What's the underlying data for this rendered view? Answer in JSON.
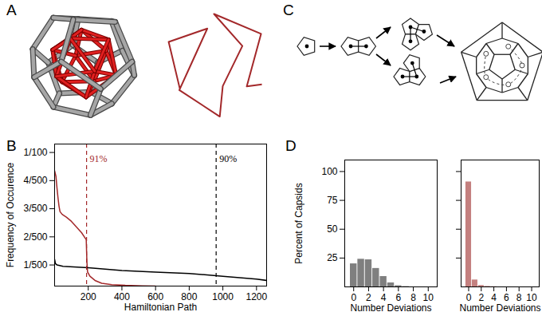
{
  "diagrams": [
    {
      "label": "A"
    },
    {
      "label": "C"
    }
  ],
  "chart_data": [
    {
      "type": "line",
      "title": "B",
      "x_label": "Hamiltonian Path",
      "y_label": "Frequency of Occurence",
      "series": [
        {
          "color": "#a3282a",
          "x": [
            0,
            8,
            14,
            20,
            26,
            32,
            45,
            70,
            100,
            130,
            160,
            188,
            192,
            196,
            210,
            240,
            280,
            340,
            420,
            520,
            600
          ],
          "values": [
            0.0087,
            0.0083,
            0.0075,
            0.0068,
            0.0062,
            0.0058,
            0.0056,
            0.0054,
            0.0051,
            0.0047,
            0.0043,
            0.0038,
            0.0022,
            0.0015,
            0.0012,
            0.0009,
            0.0007,
            0.0006,
            0.00055,
            0.00052,
            0.0005
          ]
        },
        {
          "color": "#000000",
          "x": [
            0,
            5,
            15,
            50,
            200,
            400,
            600,
            800,
            1000,
            1200,
            1260
          ],
          "values": [
            0.0024,
            0.0021,
            0.002,
            0.0019,
            0.0018,
            0.0016,
            0.0015,
            0.0014,
            0.0012,
            0.001,
            0.0009
          ]
        }
      ],
      "annotations": [
        {
          "x": 190,
          "text": "91%",
          "color": "#a3282a",
          "line_style": "dashed"
        },
        {
          "x": 960,
          "text": "90%",
          "color": "#000000",
          "line_style": "dashed"
        }
      ],
      "xlim": [
        0,
        1260
      ],
      "xticks": [
        200,
        400,
        600,
        800,
        1000,
        1200
      ],
      "ylim": [
        0.0005,
        0.0106
      ],
      "yticks": [
        {
          "value": 0.002,
          "label": "1/500"
        },
        {
          "value": 0.004,
          "label": "2/500"
        },
        {
          "value": 0.006,
          "label": "3/500"
        },
        {
          "value": 0.008,
          "label": "4/500"
        },
        {
          "value": 0.01,
          "label": "1/100"
        }
      ]
    },
    {
      "type": "bar",
      "title": "D",
      "x_label": "Number Deviations",
      "y_label": "Percent of Capsids",
      "x": [
        0,
        1,
        2,
        3,
        4,
        5,
        6,
        7,
        8,
        9,
        10
      ],
      "values": [
        20,
        24,
        23.5,
        16,
        9,
        3.5,
        1,
        0.3,
        0,
        0,
        0
      ],
      "color": "#7f7f7f",
      "xlim": [
        -1.2,
        11.2
      ],
      "xticks": [
        0,
        2,
        4,
        6,
        8,
        10
      ],
      "ylim": [
        0,
        110
      ],
      "yticks": [
        25,
        50,
        75,
        100
      ]
    },
    {
      "type": "bar",
      "x_label": "Number Deviations",
      "x": [
        0,
        1,
        2,
        3,
        4,
        5,
        6,
        7,
        8,
        9,
        10
      ],
      "values": [
        91,
        6,
        1.2,
        0.4,
        0.2,
        0,
        0,
        0,
        0,
        0,
        0
      ],
      "color": "#c4807f",
      "xlim": [
        -1.2,
        11.2
      ],
      "xticks": [
        0,
        2,
        4,
        6,
        8,
        10
      ],
      "ylim": [
        0,
        110
      ],
      "yticks": [
        25,
        50,
        75,
        100
      ],
      "tick_labels": "x"
    }
  ]
}
